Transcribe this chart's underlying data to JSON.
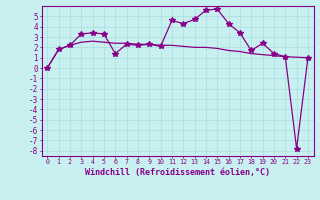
{
  "xlabel": "Windchill (Refroidissement éolien,°C)",
  "background_color": "#c8f0f0",
  "line_color": "#880088",
  "x_values": [
    0,
    1,
    2,
    3,
    4,
    5,
    6,
    7,
    8,
    9,
    10,
    11,
    12,
    13,
    14,
    15,
    16,
    17,
    18,
    19,
    20,
    21,
    22,
    23
  ],
  "y_zigzag": [
    0,
    1.8,
    2.2,
    3.3,
    3.4,
    3.3,
    1.4,
    2.3,
    2.2,
    2.3,
    2.1,
    4.6,
    4.3,
    4.7,
    5.6,
    5.7,
    4.3,
    3.4,
    1.7,
    2.4,
    1.4,
    1.1,
    -7.8,
    1.0
  ],
  "y_smooth": [
    0,
    1.8,
    2.2,
    2.5,
    2.6,
    2.5,
    2.4,
    2.4,
    2.3,
    2.3,
    2.2,
    2.2,
    2.1,
    2.0,
    2.0,
    1.9,
    1.7,
    1.6,
    1.4,
    1.3,
    1.2,
    1.1,
    1.05,
    1.0
  ],
  "ylim": [
    -8.5,
    6.0
  ],
  "xlim": [
    -0.5,
    23.5
  ],
  "yticks": [
    -8,
    -7,
    -6,
    -5,
    -4,
    -3,
    -2,
    -1,
    0,
    1,
    2,
    3,
    4,
    5
  ],
  "xticks": [
    0,
    1,
    2,
    3,
    4,
    5,
    6,
    7,
    8,
    9,
    10,
    11,
    12,
    13,
    14,
    15,
    16,
    17,
    18,
    19,
    20,
    21,
    22,
    23
  ],
  "grid_color": "#aadddd",
  "marker": "*",
  "marker_size": 4,
  "line_width": 0.9
}
